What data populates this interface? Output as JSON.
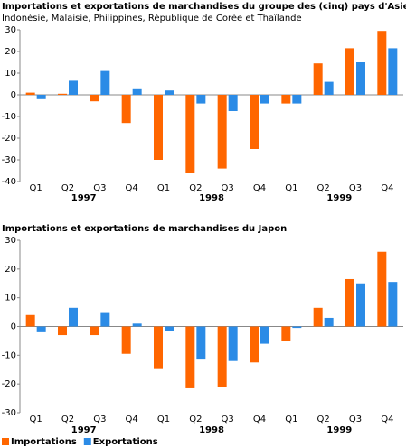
{
  "chart_data": [
    {
      "type": "bar",
      "title": "Importations et exportations de marchandises du groupe des (cinq) pays d'Asie",
      "subtitle": "Indonésie, Malaisie, Philippines, République de Corée et Thaïlande",
      "categories": [
        "Q1",
        "Q2",
        "Q3",
        "Q4",
        "Q1",
        "Q2",
        "Q3",
        "Q4",
        "Q1",
        "Q2",
        "Q3",
        "Q4"
      ],
      "groups": [
        "1997",
        "1998",
        "1999"
      ],
      "series": [
        {
          "color": "#ff6600",
          "values": [
            1,
            0.5,
            -3,
            -13,
            -30,
            -36,
            -34,
            -25,
            -4,
            14.5,
            21.5,
            29.5
          ]
        },
        {
          "color": "#2b8be6",
          "values": [
            -2,
            6.5,
            11,
            3,
            2,
            -4,
            -7.5,
            -4,
            -4,
            6,
            15,
            21.5
          ]
        }
      ],
      "ylim": [
        -40,
        30
      ],
      "yticks": [
        -40,
        -30,
        -20,
        -10,
        0,
        10,
        20,
        30
      ]
    },
    {
      "type": "bar",
      "title": "Importations et exportations de marchandises du Japon",
      "categories": [
        "Q1",
        "Q2",
        "Q3",
        "Q4",
        "Q1",
        "Q2",
        "Q3",
        "Q4",
        "Q1",
        "Q2",
        "Q3",
        "Q4"
      ],
      "groups": [
        "1997",
        "1998",
        "1999"
      ],
      "series": [
        {
          "name": "Importations",
          "color": "#ff6600",
          "values": [
            4,
            -3,
            -3,
            -9.5,
            -14.5,
            -21.5,
            -21,
            -12.5,
            -5,
            6.5,
            16.5,
            26
          ]
        },
        {
          "name": "Exportations",
          "color": "#2b8be6",
          "values": [
            -2,
            6.5,
            5,
            1,
            -1.5,
            -11.5,
            -12,
            -6,
            -0.5,
            3,
            15,
            15.5
          ]
        }
      ],
      "ylim": [
        -30,
        30
      ],
      "yticks": [
        -30,
        -20,
        -10,
        0,
        10,
        20,
        30
      ],
      "legend": "bottom-left"
    }
  ]
}
